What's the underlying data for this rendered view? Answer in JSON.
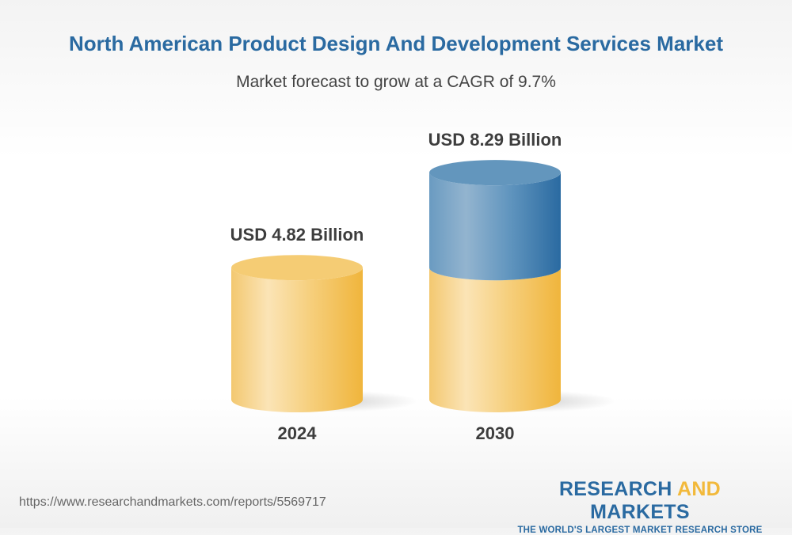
{
  "title": "North American Product Design And Development Services Market",
  "subtitle": "Market forecast to grow at a CAGR of 9.7%",
  "chart_data": {
    "type": "bar",
    "style": "3d-cylinder",
    "categories": [
      "2024",
      "2030"
    ],
    "values": [
      4.82,
      8.29
    ],
    "data_labels": [
      "USD 4.82 Billion",
      "USD 8.29 Billion"
    ],
    "unit": "USD Billion",
    "colors": {
      "base": "#f2b93b",
      "growth": "#2a6aa1"
    }
  },
  "footer": {
    "url": "https://www.researchandmarkets.com/reports/5569717",
    "logo_word1": "RESEARCH",
    "logo_word2": "AND",
    "logo_word3": "MARKETS",
    "tagline": "THE WORLD'S LARGEST MARKET RESEARCH STORE"
  }
}
